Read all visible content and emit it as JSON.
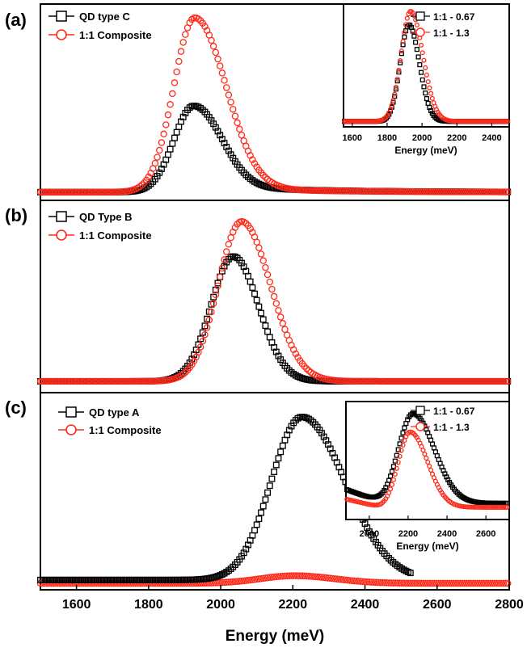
{
  "colors": {
    "series_black": "#000000",
    "series_red": "#ff2a1a"
  },
  "chart_data": [
    {
      "panel": "(a)",
      "type": "scatter",
      "xlim": [
        1500,
        2800
      ],
      "xlabel": "",
      "series": [
        {
          "name": "QD type C",
          "marker": "square",
          "color": "#000000",
          "model": {
            "peak_x": 1925,
            "peak_y": 0.5,
            "w_left": 55,
            "w_right": 75,
            "baseline": 0.01,
            "tail_amp": 0.04,
            "tail_width": 260
          }
        },
        {
          "name": "1:1 Composite",
          "marker": "circle",
          "color": "#ff2a1a",
          "model": {
            "peak_x": 1928,
            "peak_y": 1.0,
            "w_left": 58,
            "w_right": 85,
            "baseline": 0.01,
            "tail_amp": 0.03,
            "tail_width": 260
          }
        }
      ],
      "inset": {
        "xlim": [
          1550,
          2500
        ],
        "ticks": [
          1600,
          1800,
          2000,
          2200,
          2400
        ],
        "xlabel": "Energy (meV)",
        "series": [
          {
            "name": "1:1 - 0.67",
            "marker": "square",
            "color": "#000000",
            "model": {
              "peak_x": 1925,
              "peak_y": 0.88,
              "w_left": 50,
              "w_right": 60,
              "baseline": 0.02
            }
          },
          {
            "name": "1:1 - 1.3",
            "marker": "circle",
            "color": "#ff2a1a",
            "model": {
              "peak_x": 1935,
              "peak_y": 1.0,
              "w_left": 55,
              "w_right": 70,
              "baseline": 0.02
            }
          }
        ]
      }
    },
    {
      "panel": "(b)",
      "type": "scatter",
      "xlim": [
        1500,
        2800
      ],
      "xlabel": "",
      "series": [
        {
          "name": "QD Type B",
          "marker": "square",
          "color": "#000000",
          "model": {
            "peak_x": 2035,
            "peak_y": 0.76,
            "w_left": 62,
            "w_right": 70,
            "baseline": 0.01
          }
        },
        {
          "name": "1:1 Composite",
          "marker": "circle",
          "color": "#ff2a1a",
          "model": {
            "peak_x": 2058,
            "peak_y": 0.97,
            "w_left": 65,
            "w_right": 80,
            "baseline": 0.01
          }
        }
      ]
    },
    {
      "panel": "(c)",
      "type": "scatter",
      "xlim": [
        1500,
        2800
      ],
      "ticks": [
        1600,
        1800,
        2000,
        2200,
        2400,
        2600,
        2800
      ],
      "xlabel": "Energy (meV)",
      "series": [
        {
          "name": "QD  type A",
          "marker": "square",
          "color": "#000000",
          "x_end": 2530,
          "model": {
            "peak_x": 2225,
            "peak_y": 0.99,
            "w_left": 85,
            "w_right": 120,
            "baseline": 0.02
          }
        },
        {
          "name": "1:1 Composite",
          "marker": "circle",
          "color": "#ff2a1a",
          "model": {
            "peak_x": 2205,
            "peak_y": 0.045,
            "w_left": 95,
            "w_right": 110,
            "baseline": 0.0
          }
        }
      ],
      "inset": {
        "xlim": [
          1880,
          2720
        ],
        "ticks": [
          2000,
          2200,
          2400,
          2600
        ],
        "xlabel": "Energy (meV)",
        "series": [
          {
            "name": "1:1 - 0.67",
            "marker": "square",
            "color": "#000000",
            "model": {
              "peak_x": 2225,
              "peak_y": 1.0,
              "w_left": 75,
              "w_right": 110,
              "baseline": 0.12,
              "bg_slope": 0.28
            }
          },
          {
            "name": "1:1 - 1.3",
            "marker": "circle",
            "color": "#ff2a1a",
            "model": {
              "peak_x": 2210,
              "peak_y": 0.82,
              "w_left": 60,
              "w_right": 90,
              "baseline": 0.08,
              "bg_slope": 0.18
            }
          }
        ]
      }
    }
  ]
}
